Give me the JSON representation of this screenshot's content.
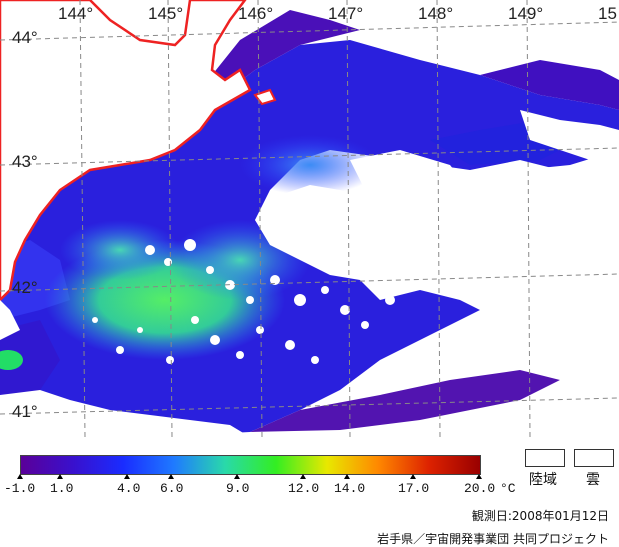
{
  "map": {
    "longitude_labels": [
      "144°",
      "145°",
      "146°",
      "147°",
      "148°",
      "149°",
      "15"
    ],
    "latitude_labels": [
      "44°",
      "43°",
      "42°",
      "41°"
    ]
  },
  "legend": {
    "ticks": [
      "-1.0",
      "1.0",
      "4.0",
      "6.0",
      "9.0",
      "12.0",
      "14.0",
      "17.0",
      "20.0"
    ],
    "unit": "°C",
    "land_label": "陸域",
    "cloud_label": "雲",
    "colors": [
      "#5a0099",
      "#3a10cc",
      "#1a2cff",
      "#1f7aff",
      "#29d9aa",
      "#33ee22",
      "#e8e800",
      "#ff8800",
      "#dd2200",
      "#990000"
    ]
  },
  "observation_date": "観測日:2008年01月12日",
  "credit": "岩手県／宇宙開発事業団 共同プロジェクト"
}
